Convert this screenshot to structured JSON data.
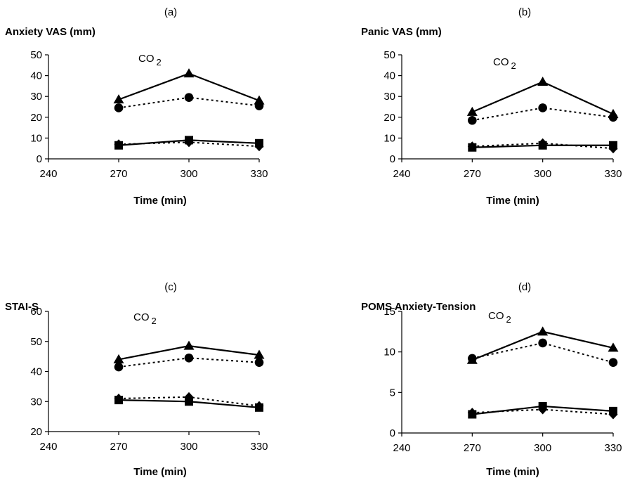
{
  "chart_data": [
    {
      "type": "line",
      "panel_label": "(a)",
      "ylabel": "Anxiety VAS (mm)",
      "xlabel": "Time (min)",
      "annotation": "CO₂",
      "x": [
        270,
        300,
        330
      ],
      "xticks": [
        240,
        270,
        300,
        330
      ],
      "yticks": [
        0,
        10,
        20,
        30,
        40,
        50
      ],
      "xlim": [
        240,
        330
      ],
      "ylim": [
        0,
        50
      ],
      "grid": false,
      "series": [
        {
          "marker": "triangle",
          "line": "solid",
          "values": [
            28.5,
            41,
            28
          ]
        },
        {
          "marker": "circle",
          "line": "dotted",
          "values": [
            24.5,
            29.5,
            25.5
          ]
        },
        {
          "marker": "square",
          "line": "solid",
          "values": [
            6.5,
            9,
            7.5
          ]
        },
        {
          "marker": "diamond",
          "line": "dotted",
          "values": [
            7,
            8,
            6
          ]
        }
      ]
    },
    {
      "type": "line",
      "panel_label": "(b)",
      "ylabel": "Panic VAS (mm)",
      "xlabel": "Time (min)",
      "annotation": "CO₂",
      "x": [
        270,
        300,
        330
      ],
      "xticks": [
        240,
        270,
        300,
        330
      ],
      "yticks": [
        0,
        10,
        20,
        30,
        40,
        50
      ],
      "xlim": [
        240,
        330
      ],
      "ylim": [
        0,
        50
      ],
      "grid": false,
      "series": [
        {
          "marker": "triangle",
          "line": "solid",
          "values": [
            22.5,
            37,
            21.5
          ]
        },
        {
          "marker": "circle",
          "line": "dotted",
          "values": [
            18.5,
            24.5,
            20
          ]
        },
        {
          "marker": "square",
          "line": "solid",
          "values": [
            5.5,
            6.5,
            6.5
          ]
        },
        {
          "marker": "diamond",
          "line": "dotted",
          "values": [
            6,
            7.5,
            5
          ]
        }
      ]
    },
    {
      "type": "line",
      "panel_label": "(c)",
      "ylabel": "STAI-S",
      "xlabel": "Time (min)",
      "annotation": "CO₂",
      "x": [
        270,
        300,
        330
      ],
      "xticks": [
        240,
        270,
        300,
        330
      ],
      "yticks": [
        20,
        30,
        40,
        50,
        60
      ],
      "xlim": [
        240,
        330
      ],
      "ylim": [
        20,
        60
      ],
      "grid": false,
      "series": [
        {
          "marker": "triangle",
          "line": "solid",
          "values": [
            44,
            48.5,
            45.5
          ]
        },
        {
          "marker": "circle",
          "line": "dotted",
          "values": [
            41.5,
            44.5,
            43
          ]
        },
        {
          "marker": "square",
          "line": "solid",
          "values": [
            30.5,
            30,
            28
          ]
        },
        {
          "marker": "diamond",
          "line": "dotted",
          "values": [
            31,
            31.5,
            28.5
          ]
        }
      ]
    },
    {
      "type": "line",
      "panel_label": "(d)",
      "ylabel": "POMS Anxiety-Tension",
      "xlabel": "Time (min)",
      "annotation": "CO₂",
      "x": [
        270,
        300,
        330
      ],
      "xticks": [
        240,
        270,
        300,
        330
      ],
      "yticks": [
        0,
        5,
        10,
        15
      ],
      "xlim": [
        240,
        330
      ],
      "ylim": [
        0,
        15
      ],
      "grid": false,
      "series": [
        {
          "marker": "triangle",
          "line": "solid",
          "values": [
            9,
            12.5,
            10.5
          ]
        },
        {
          "marker": "circle",
          "line": "dotted",
          "values": [
            9.2,
            11.1,
            8.7
          ]
        },
        {
          "marker": "square",
          "line": "solid",
          "values": [
            2.3,
            3.3,
            2.7
          ]
        },
        {
          "marker": "diamond",
          "line": "dotted",
          "values": [
            2.5,
            2.9,
            2.3
          ]
        }
      ]
    }
  ]
}
